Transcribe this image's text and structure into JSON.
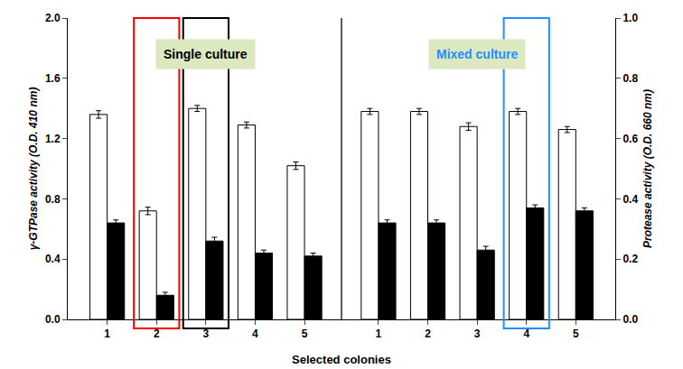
{
  "chart_data": {
    "type": "bar",
    "categories": [
      "1",
      "2",
      "3",
      "4",
      "5",
      "1",
      "2",
      "3",
      "4",
      "5"
    ],
    "series": [
      {
        "color": "white",
        "values": [
          1.36,
          0.72,
          1.4,
          1.29,
          1.02,
          1.38,
          1.38,
          1.28,
          1.38,
          1.26
        ],
        "error": [
          0.025,
          0.025,
          0.02,
          0.02,
          0.025,
          0.02,
          0.02,
          0.025,
          0.02,
          0.02
        ]
      },
      {
        "color": "black",
        "values": [
          0.64,
          0.16,
          0.52,
          0.44,
          0.42,
          0.64,
          0.64,
          0.46,
          0.74,
          0.72
        ],
        "error": [
          0.02,
          0.02,
          0.025,
          0.02,
          0.02,
          0.02,
          0.02,
          0.025,
          0.02,
          0.02
        ]
      }
    ],
    "xlabel": "Selected colonies",
    "ylabel": "γ-GTPase activity (O.D. 410 nm)",
    "y2label": "Protease activity (O.D. 660 nm)",
    "ylim": [
      0.0,
      2.0
    ],
    "yticks": [
      {
        "value": 0.0,
        "label": "0.0"
      },
      0.4,
      0.8,
      1.2,
      1.6,
      {
        "value": 2.0,
        "label": "2.0"
      }
    ],
    "y2lim": [
      0.0,
      1.0
    ],
    "y2ticks": [
      {
        "value": 0.0,
        "label": "0.0"
      },
      0.2,
      0.4,
      0.6,
      0.8,
      {
        "value": 1.0,
        "label": "1.0"
      }
    ],
    "grid": false,
    "annotations": [
      {
        "text": "Single culture",
        "color": "black",
        "background": "#dce8c0"
      },
      {
        "text": "Mixed culture",
        "color": "#1e90ff",
        "background": "#dce8c0"
      }
    ],
    "highlights": [
      {
        "index": 1,
        "color": "red"
      },
      {
        "index": 2,
        "color": "black"
      },
      {
        "index": 8,
        "color": "#1e90ff"
      }
    ]
  }
}
